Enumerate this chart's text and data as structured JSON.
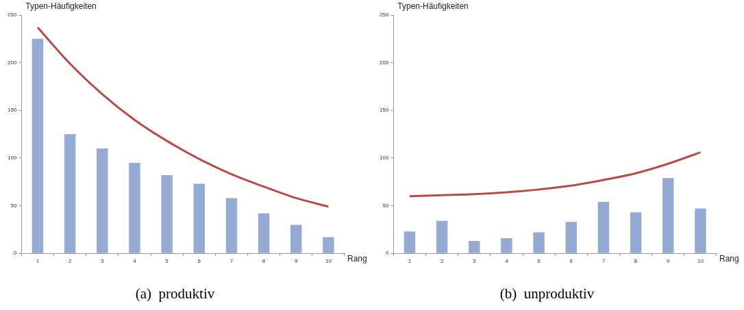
{
  "chart_data": [
    {
      "type": "bar",
      "title": "(a)  produktiv",
      "xlabel": "Rang",
      "ylabel": "Typen-Häufigkeiten",
      "categories": [
        "1",
        "2",
        "3",
        "4",
        "5",
        "6",
        "7",
        "8",
        "9",
        "10"
      ],
      "series": [
        {
          "color": "#95abd4",
          "values": [
            225,
            125,
            110,
            95,
            82,
            73,
            58,
            42,
            30,
            17
          ]
        },
        {
          "type": "line",
          "color": "#b94a48",
          "values": [
            237,
            199,
            167,
            140,
            118,
            99,
            83,
            70,
            58,
            49
          ]
        }
      ],
      "ylim": [
        0,
        250
      ],
      "yticks": [
        0,
        50,
        100,
        150,
        200,
        250
      ],
      "grid": false,
      "legend": false,
      "marker": "none"
    },
    {
      "type": "bar",
      "title": "(b)  unproduktiv",
      "xlabel": "Rang",
      "ylabel": "Typen-Häufigkeiten",
      "categories": [
        "1",
        "2",
        "3",
        "4",
        "5",
        "6",
        "7",
        "8",
        "9",
        "10"
      ],
      "series": [
        {
          "color": "#95abd4",
          "values": [
            23,
            34,
            13,
            16,
            22,
            33,
            54,
            43,
            79,
            47
          ]
        },
        {
          "type": "line",
          "color": "#b94a48",
          "values": [
            60,
            61,
            62,
            64,
            67,
            71,
            77,
            84,
            94,
            106
          ]
        }
      ],
      "ylim": [
        0,
        250
      ],
      "yticks": [
        0,
        50,
        100,
        150,
        200,
        250
      ],
      "grid": false,
      "legend": false,
      "marker": "none"
    }
  ]
}
